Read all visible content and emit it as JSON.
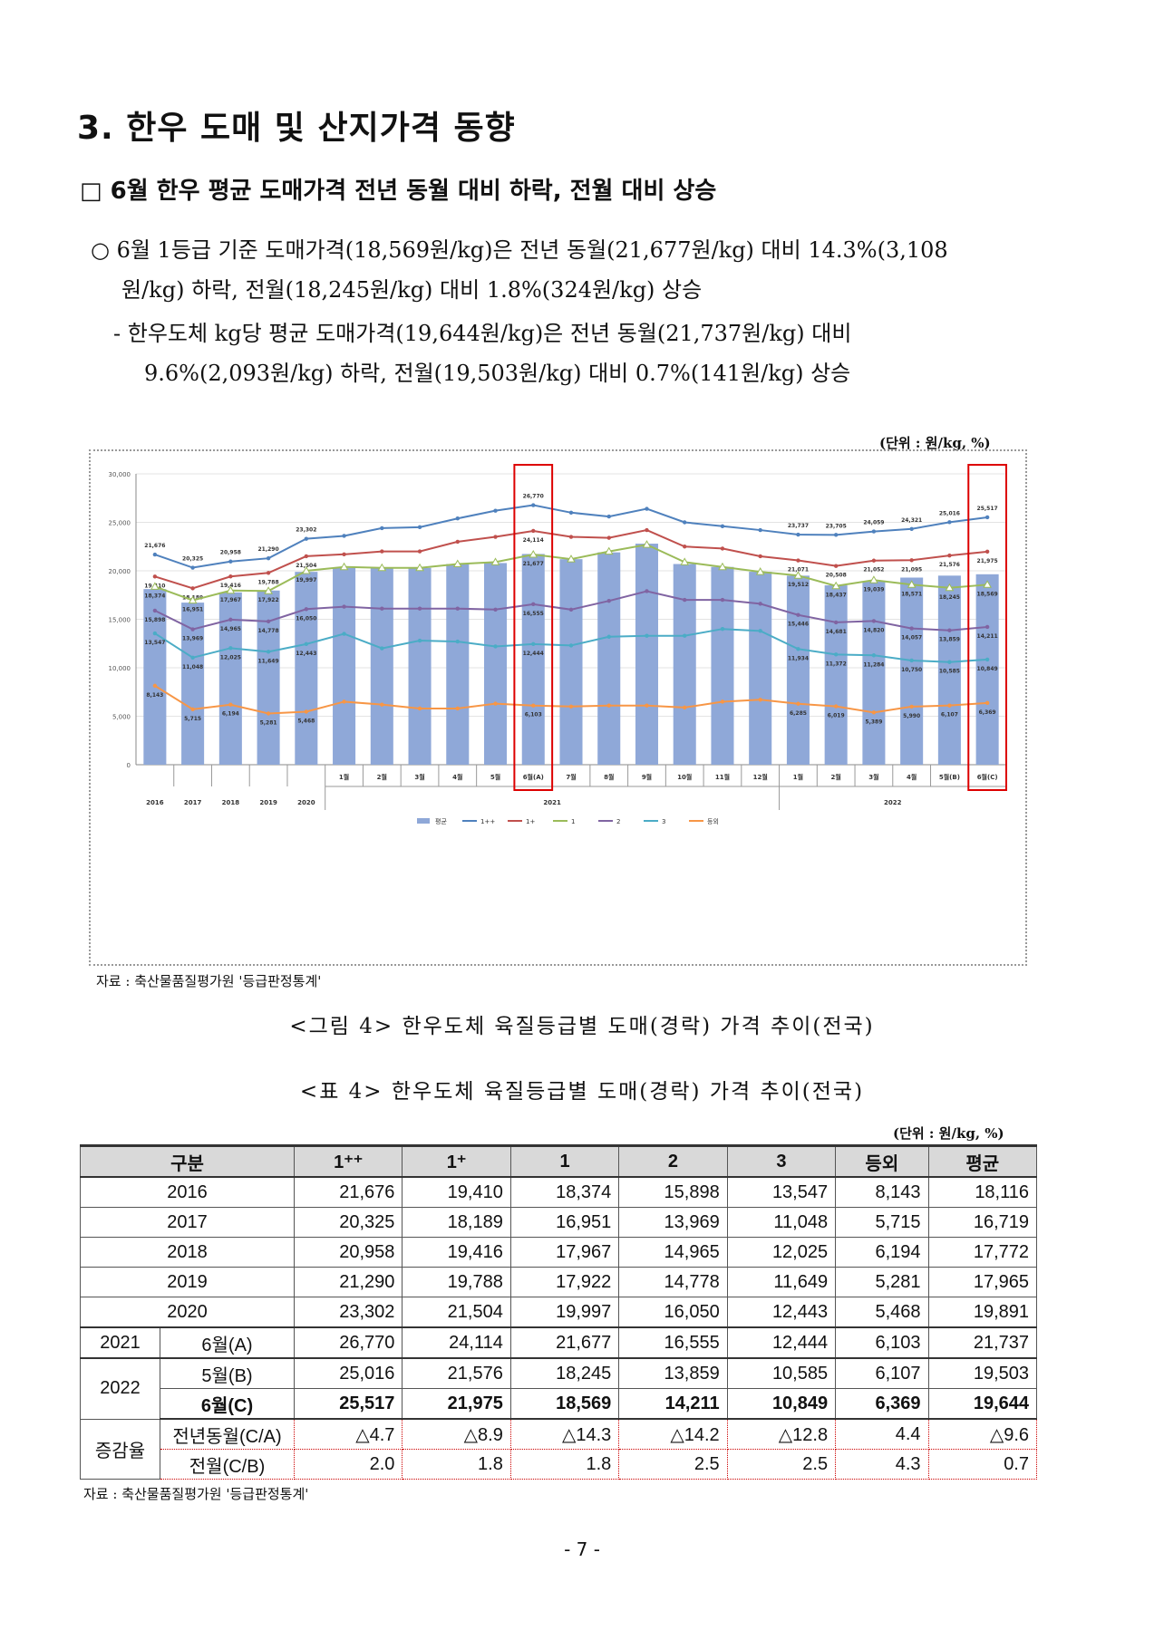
{
  "section_title": "3. 한우 도매 및 산지가격 동향",
  "sub_heading": "□ 6월 한우 평균 도매가격 전년 동월 대비 하락, 전월 대비 상승",
  "bullet1": {
    "line1": "○ 6월 1등급 기준 도매가격(18,569원/kg)은 전년 동월(21,677원/kg) 대비 14.3%(3,108",
    "line2": "원/kg) 하락, 전월(18,245원/kg) 대비 1.8%(324원/kg) 상승"
  },
  "bullet2": {
    "line1": "- 한우도체 kg당 평균 도매가격(19,644원/kg)은 전년 동월(21,737원/kg) 대비",
    "line2": "9.6%(2,093원/kg) 하락, 전월(19,503원/kg) 대비 0.7%(141원/kg) 상승"
  },
  "chart_unit": "(단위 : 원/kg, %)",
  "chart_data": {
    "type": "bar",
    "categories": [
      "2016",
      "2017",
      "2018",
      "2019",
      "2020",
      "1월",
      "2월",
      "3월",
      "4월",
      "5월",
      "6월(A)",
      "7월",
      "8월",
      "9월",
      "10월",
      "11월",
      "12월",
      "1월",
      "2월",
      "3월",
      "4월",
      "5월(B)",
      "6월(C)"
    ],
    "group_labels": [
      "2021",
      "2022"
    ],
    "ylim": [
      0,
      30000
    ],
    "yticks": [
      "0",
      "5,000",
      "10,000",
      "15,000",
      "20,000",
      "25,000",
      "30,000"
    ],
    "series": [
      {
        "name": "평균",
        "type": "bar",
        "color": "#8fa8d8",
        "values": [
          18116,
          16719,
          17772,
          17965,
          19891,
          20300,
          20300,
          20300,
          20700,
          20800,
          21737,
          21200,
          21900,
          22800,
          20700,
          20400,
          19900,
          19500,
          18500,
          18900,
          19300,
          19503,
          19644
        ]
      },
      {
        "name": "1++",
        "type": "line",
        "color": "#4f81bd",
        "values": [
          21676,
          20325,
          20958,
          21290,
          23302,
          23600,
          24400,
          24500,
          25400,
          26200,
          26770,
          26000,
          25600,
          26400,
          25000,
          24600,
          24200,
          23737,
          23705,
          24059,
          24321,
          25016,
          25517
        ]
      },
      {
        "name": "1+",
        "type": "line",
        "color": "#c0504d",
        "values": [
          19410,
          18189,
          19416,
          19788,
          21504,
          21700,
          22000,
          22000,
          23000,
          23500,
          24114,
          23500,
          23400,
          24200,
          22500,
          22300,
          21500,
          21071,
          20500,
          21052,
          21095,
          21576,
          21975
        ]
      },
      {
        "name": "1",
        "type": "line",
        "color": "#9bbb59",
        "values": [
          18374,
          16951,
          17967,
          17922,
          19997,
          20400,
          20300,
          20300,
          20700,
          20900,
          21677,
          21200,
          22000,
          22700,
          20900,
          20400,
          19900,
          19512,
          18437,
          19039,
          18571,
          18245,
          18569
        ]
      },
      {
        "name": "2",
        "type": "line",
        "color": "#8064a2",
        "values": [
          15898,
          13969,
          14965,
          14778,
          16050,
          16300,
          16100,
          16100,
          16100,
          16000,
          16555,
          16000,
          16900,
          17900,
          17000,
          17000,
          16600,
          15446,
          14681,
          14820,
          14057,
          13859,
          14211
        ]
      },
      {
        "name": "3",
        "type": "line",
        "color": "#4bacc6",
        "values": [
          13547,
          11048,
          12025,
          11649,
          12443,
          13500,
          12000,
          12800,
          12700,
          12200,
          12444,
          12300,
          13200,
          13300,
          13300,
          14000,
          13800,
          11934,
          11372,
          11284,
          10750,
          10585,
          10849
        ]
      },
      {
        "name": "등외",
        "type": "line",
        "color": "#f79646",
        "values": [
          8143,
          5715,
          6194,
          5281,
          5468,
          6500,
          6200,
          5800,
          5800,
          6300,
          6103,
          6000,
          6100,
          6100,
          5900,
          6500,
          6700,
          6285,
          6019,
          5389,
          5990,
          6107,
          6369
        ]
      }
    ],
    "labels_1pp": [
      "21,676",
      "20,325",
      "20,958",
      "21,290",
      "23,302",
      "",
      "",
      "",
      "",
      "",
      "26,770",
      "",
      "",
      "",
      "",
      "",
      "",
      "23,737",
      "23,705",
      "24,059",
      "24,321",
      "25,016",
      "25,517"
    ],
    "labels_1p": [
      "19,410",
      "18,189",
      "19,416",
      "19,788",
      "21,504",
      "",
      "",
      "",
      "",
      "",
      "24,114",
      "",
      "",
      "",
      "",
      "",
      "",
      "21,071",
      "20,508",
      "21,052",
      "21,095",
      "21,576",
      "21,975"
    ],
    "labels_1": [
      "18,374",
      "16,951",
      "17,967",
      "17,922",
      "19,997",
      "",
      "",
      "",
      "",
      "",
      "21,677",
      "",
      "",
      "",
      "",
      "",
      "",
      "19,512",
      "18,437",
      "19,039",
      "18,571",
      "18,245",
      "18,569"
    ],
    "labels_2": [
      "15,898",
      "13,969",
      "14,965",
      "14,778",
      "16,050",
      "",
      "",
      "",
      "",
      "",
      "16,555",
      "",
      "",
      "",
      "",
      "",
      "",
      "15,446",
      "14,681",
      "14,820",
      "14,057",
      "13,859",
      "14,211"
    ],
    "labels_3": [
      "13,547",
      "11,048",
      "12,025",
      "11,649",
      "12,443",
      "",
      "",
      "",
      "",
      "",
      "12,444",
      "",
      "",
      "",
      "",
      "",
      "",
      "11,934",
      "11,372",
      "11,284",
      "10,750",
      "10,585",
      "10,849"
    ],
    "labels_etc": [
      "8,143",
      "5,715",
      "6,194",
      "5,281",
      "5,468",
      "",
      "",
      "",
      "",
      "",
      "6,103",
      "",
      "",
      "",
      "",
      "",
      "",
      "6,285",
      "6,019",
      "5,389",
      "5,990",
      "6,107",
      "6,369"
    ],
    "highlight_indices": [
      10,
      22
    ]
  },
  "figure_source": "자료 : 축산물품질평가원 '등급판정통계'",
  "figure_caption": "<그림 4> 한우도체 육질등급별 도매(경락) 가격 추이(전국)",
  "table_caption": "<표 4> 한우도체 육질등급별 도매(경락) 가격 추이(전국)",
  "table_unit": "(단위 : 원/kg, %)",
  "table": {
    "headers": [
      "구분",
      "1⁺⁺",
      "1⁺",
      "1",
      "2",
      "3",
      "등외",
      "평균"
    ],
    "rows": [
      [
        "2016",
        "21,676",
        "19,410",
        "18,374",
        "15,898",
        "13,547",
        "8,143",
        "18,116"
      ],
      [
        "2017",
        "20,325",
        "18,189",
        "16,951",
        "13,969",
        "11,048",
        "5,715",
        "16,719"
      ],
      [
        "2018",
        "20,958",
        "19,416",
        "17,967",
        "14,965",
        "12,025",
        "6,194",
        "17,772"
      ],
      [
        "2019",
        "21,290",
        "19,788",
        "17,922",
        "14,778",
        "11,649",
        "5,281",
        "17,965"
      ],
      [
        "2020",
        "23,302",
        "21,504",
        "19,997",
        "16,050",
        "12,443",
        "5,468",
        "19,891"
      ]
    ],
    "row2021": {
      "year": "2021",
      "label": "6월(A)",
      "values": [
        "26,770",
        "24,114",
        "21,677",
        "16,555",
        "12,444",
        "6,103",
        "21,737"
      ]
    },
    "row2022": {
      "year": "2022",
      "may": {
        "label": "5월(B)",
        "values": [
          "25,016",
          "21,576",
          "18,245",
          "13,859",
          "10,585",
          "6,107",
          "19,503"
        ]
      },
      "june": {
        "label": "6월(C)",
        "values": [
          "25,517",
          "21,975",
          "18,569",
          "14,211",
          "10,849",
          "6,369",
          "19,644"
        ]
      }
    },
    "rates": {
      "label": "증감율",
      "yoy": {
        "label": "전년동월(C/A)",
        "values": [
          "△4.7",
          "△8.9",
          "△14.3",
          "△14.2",
          "△12.8",
          "4.4",
          "△9.6"
        ]
      },
      "mom": {
        "label": "전월(C/B)",
        "values": [
          "2.0",
          "1.8",
          "1.8",
          "2.5",
          "2.5",
          "4.3",
          "0.7"
        ]
      }
    }
  },
  "table_source": "자료 : 축산물품질평가원 '등급판정통계'",
  "page_number": "- 7 -"
}
